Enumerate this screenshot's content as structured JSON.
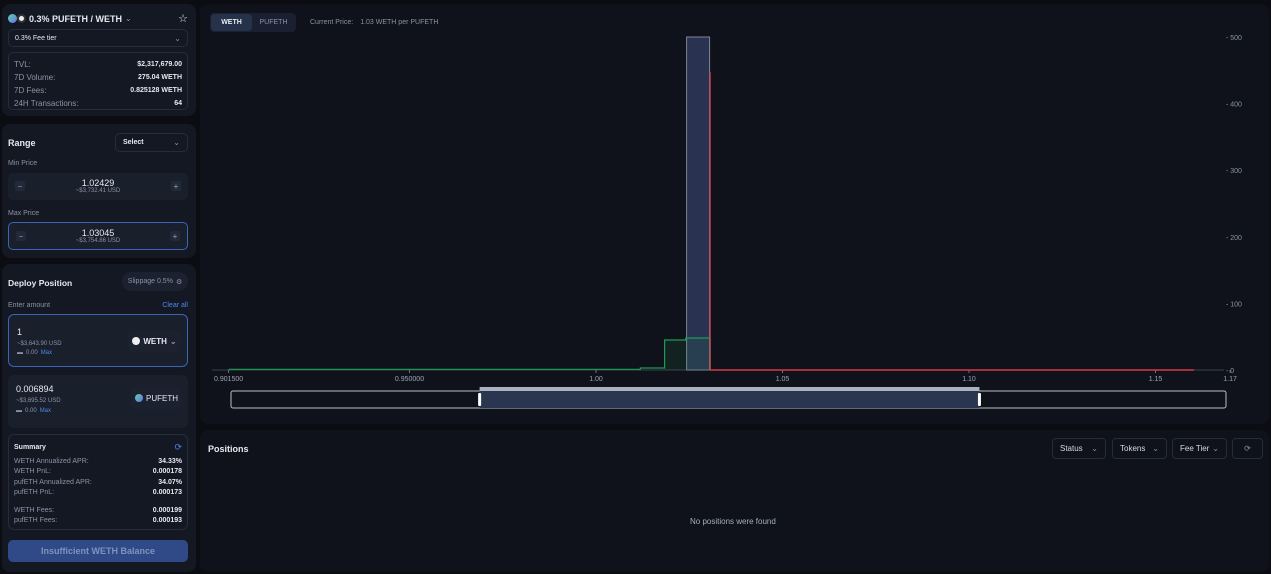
{
  "pool": {
    "title": "0.3% PUFETH / WETH",
    "fee_tier": "0.3% Fee tier",
    "stats": [
      {
        "label": "TVL:",
        "value": "$2,317,679.00"
      },
      {
        "label": "7D Volume:",
        "value": "275.04 WETH"
      },
      {
        "label": "7D Fees:",
        "value": "0.825128 WETH"
      },
      {
        "label": "24H Transactions:",
        "value": "64"
      }
    ]
  },
  "range": {
    "title": "Range",
    "select": "Select",
    "min_label": "Min Price",
    "min_value": "1.02429",
    "min_usd": "~$3,732.41 USD",
    "max_label": "Max Price",
    "max_value": "1.03045",
    "max_usd": "~$3,754.86 USD",
    "minus": "−",
    "plus": "+"
  },
  "deploy": {
    "title": "Deploy Position",
    "slippage": "Slippage 0.5%",
    "enter_amount": "Enter amount",
    "clear_all": "Clear all",
    "token_a": {
      "amount": "1",
      "usd": "~$3,643.90 USD",
      "balance": "0.00",
      "max": "Max",
      "symbol": "WETH"
    },
    "token_b": {
      "amount": "0.006894",
      "usd": "~$3,695.52 USD",
      "balance": "0.00",
      "max": "Max",
      "symbol": "PUFETH"
    },
    "summary": {
      "title": "Summary",
      "rows": [
        {
          "label": "WETH Annualized APR:",
          "value": "34.33%"
        },
        {
          "label": "WETH PnL:",
          "value": "0.000178"
        },
        {
          "label": "pufETH Annualized APR:",
          "value": "34.07%"
        },
        {
          "label": "pufETH PnL:",
          "value": "0.000173"
        }
      ],
      "fees": [
        {
          "label": "WETH Fees:",
          "value": "0.000199"
        },
        {
          "label": "pufETH Fees:",
          "value": "0.000193"
        }
      ]
    },
    "submit": "Insufficient WETH Balance"
  },
  "chart": {
    "tabs": [
      "WETH",
      "PUFETH"
    ],
    "current_price_label": "Current Price:",
    "current_price": "1.03 WETH per PUFETH"
  },
  "chart_data": {
    "type": "area",
    "xlim": [
      0.9015,
      1.17
    ],
    "ylim": [
      0,
      500
    ],
    "x_ticks": [
      "0.901500",
      "0.950000",
      "1.00",
      "1.05",
      "1.10",
      "1.15",
      "1.17"
    ],
    "x_tick_values": [
      0.9015,
      0.95,
      1.0,
      1.05,
      1.1,
      1.15,
      1.17
    ],
    "y_ticks": [
      0,
      100,
      200,
      300,
      400,
      500
    ],
    "colors": {
      "below": "#1f9d55",
      "above": "#d63a4a",
      "range": "#2e3a5c"
    },
    "below_price": [
      {
        "from": 0.9015,
        "to": 1.0119,
        "value": 1
      },
      {
        "from": 1.0119,
        "to": 1.0184,
        "value": 3
      },
      {
        "from": 1.0184,
        "to": 1.0241,
        "value": 45
      },
      {
        "from": 1.0241,
        "to": 1.0306,
        "value": 48
      }
    ],
    "above_price": [
      {
        "from": 1.0306,
        "to": 1.0306,
        "value": 447
      },
      {
        "from": 1.0306,
        "to": 1.1603,
        "value": 0
      }
    ],
    "selected_range": [
      1.02429,
      1.03045
    ],
    "brush_range": [
      0.9688,
      1.1028
    ]
  },
  "positions": {
    "title": "Positions",
    "filters": [
      "Status",
      "Tokens",
      "Fee Tier"
    ],
    "empty": "No positions were found"
  }
}
